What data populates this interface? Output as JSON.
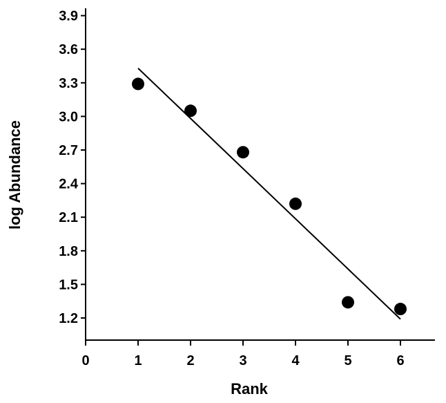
{
  "chart_data": {
    "type": "scatter",
    "title": "",
    "xlabel": "Rank",
    "ylabel": "log Abundance",
    "xlim": [
      0,
      7
    ],
    "ylim": [
      0.9,
      4.0
    ],
    "x_ticks": [
      0,
      1,
      2,
      3,
      4,
      5,
      6
    ],
    "x_tick_labels": [
      "0",
      "1",
      "2",
      "3",
      "4",
      "5",
      "6"
    ],
    "y_ticks": [
      1.2,
      1.5,
      1.8,
      2.1,
      2.4,
      2.7,
      3.0,
      3.3,
      3.6,
      3.9
    ],
    "y_tick_labels": [
      "1.2",
      "1.5",
      "1.8",
      "2.1",
      "2.4",
      "2.7",
      "3.0",
      "3.3",
      "3.6",
      "3.9"
    ],
    "grid": false,
    "legend": "none",
    "series": [
      {
        "type": "scatter",
        "x": [
          1,
          2,
          3,
          4,
          5,
          6
        ],
        "y": [
          3.29,
          3.05,
          2.68,
          2.22,
          1.34,
          1.28
        ]
      },
      {
        "type": "line",
        "x": [
          1,
          6
        ],
        "y": [
          3.43,
          1.19
        ]
      }
    ],
    "colors": {
      "marker": "#000000",
      "line": "#000000",
      "axis": "#000000"
    }
  }
}
